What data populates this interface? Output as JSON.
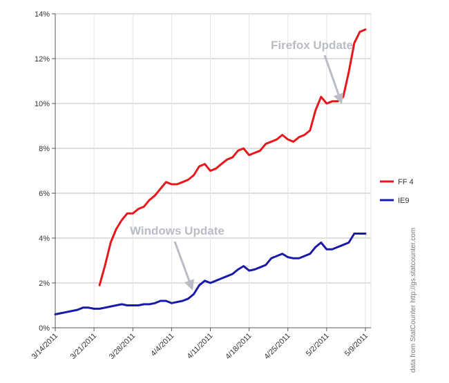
{
  "chart_data": {
    "type": "line",
    "title": "",
    "xlabel": "",
    "ylabel": "",
    "x_tick_labels": [
      "3/14/2011",
      "3/21/2011",
      "3/28/2011",
      "4/4/2011",
      "4/11/2011",
      "4/18/2011",
      "4/25/2011",
      "5/2/2011",
      "5/9/2011"
    ],
    "y_tick_labels": [
      "0%",
      "2%",
      "4%",
      "6%",
      "8%",
      "10%",
      "12%",
      "14%"
    ],
    "ylim": [
      0,
      14
    ],
    "xlim": [
      "2011-03-14",
      "2011-05-10"
    ],
    "grid": true,
    "legend_position": "right",
    "series": [
      {
        "name": "FF 4",
        "color": "#e8161b",
        "x": [
          "2011-03-22",
          "2011-03-23",
          "2011-03-24",
          "2011-03-25",
          "2011-03-26",
          "2011-03-27",
          "2011-03-28",
          "2011-03-29",
          "2011-03-30",
          "2011-03-31",
          "2011-04-01",
          "2011-04-02",
          "2011-04-03",
          "2011-04-04",
          "2011-04-05",
          "2011-04-06",
          "2011-04-07",
          "2011-04-08",
          "2011-04-09",
          "2011-04-10",
          "2011-04-11",
          "2011-04-12",
          "2011-04-13",
          "2011-04-14",
          "2011-04-15",
          "2011-04-16",
          "2011-04-17",
          "2011-04-18",
          "2011-04-19",
          "2011-04-20",
          "2011-04-21",
          "2011-04-22",
          "2011-04-23",
          "2011-04-24",
          "2011-04-25",
          "2011-04-26",
          "2011-04-27",
          "2011-04-28",
          "2011-04-29",
          "2011-04-30",
          "2011-05-01",
          "2011-05-02",
          "2011-05-03",
          "2011-05-04",
          "2011-05-05",
          "2011-05-06",
          "2011-05-07",
          "2011-05-08",
          "2011-05-09"
        ],
        "values": [
          1.9,
          2.8,
          3.8,
          4.4,
          4.8,
          5.1,
          5.1,
          5.3,
          5.4,
          5.7,
          5.9,
          6.2,
          6.5,
          6.4,
          6.4,
          6.5,
          6.6,
          6.8,
          7.2,
          7.3,
          7.0,
          7.1,
          7.3,
          7.5,
          7.6,
          7.9,
          8.0,
          7.7,
          7.8,
          7.9,
          8.2,
          8.3,
          8.4,
          8.6,
          8.4,
          8.3,
          8.5,
          8.6,
          8.8,
          9.7,
          10.3,
          10.0,
          10.1,
          10.1,
          10.3,
          11.4,
          12.7,
          13.2,
          13.3
        ]
      },
      {
        "name": "IE9",
        "color": "#1a1aa8",
        "x": [
          "2011-03-14",
          "2011-03-15",
          "2011-03-16",
          "2011-03-17",
          "2011-03-18",
          "2011-03-19",
          "2011-03-20",
          "2011-03-21",
          "2011-03-22",
          "2011-03-23",
          "2011-03-24",
          "2011-03-25",
          "2011-03-26",
          "2011-03-27",
          "2011-03-28",
          "2011-03-29",
          "2011-03-30",
          "2011-03-31",
          "2011-04-01",
          "2011-04-02",
          "2011-04-03",
          "2011-04-04",
          "2011-04-05",
          "2011-04-06",
          "2011-04-07",
          "2011-04-08",
          "2011-04-09",
          "2011-04-10",
          "2011-04-11",
          "2011-04-12",
          "2011-04-13",
          "2011-04-14",
          "2011-04-15",
          "2011-04-16",
          "2011-04-17",
          "2011-04-18",
          "2011-04-19",
          "2011-04-20",
          "2011-04-21",
          "2011-04-22",
          "2011-04-23",
          "2011-04-24",
          "2011-04-25",
          "2011-04-26",
          "2011-04-27",
          "2011-04-28",
          "2011-04-29",
          "2011-04-30",
          "2011-05-01",
          "2011-05-02",
          "2011-05-03",
          "2011-05-04",
          "2011-05-05",
          "2011-05-06",
          "2011-05-07",
          "2011-05-08",
          "2011-05-09"
        ],
        "values": [
          0.6,
          0.65,
          0.7,
          0.75,
          0.8,
          0.9,
          0.9,
          0.85,
          0.85,
          0.9,
          0.95,
          1.0,
          1.05,
          1.0,
          1.0,
          1.0,
          1.05,
          1.05,
          1.1,
          1.2,
          1.2,
          1.1,
          1.15,
          1.2,
          1.3,
          1.5,
          1.9,
          2.1,
          2.0,
          2.1,
          2.2,
          2.3,
          2.4,
          2.6,
          2.75,
          2.55,
          2.6,
          2.7,
          2.8,
          3.1,
          3.2,
          3.3,
          3.15,
          3.1,
          3.1,
          3.2,
          3.3,
          3.6,
          3.8,
          3.5,
          3.5,
          3.6,
          3.7,
          3.8,
          4.2,
          4.2,
          4.2
        ]
      }
    ],
    "annotations": [
      {
        "text": "Firefox Update",
        "target_x": "2011-05-05",
        "target_y": 10.3
      },
      {
        "text": "Windows Update",
        "target_x": "2011-04-08",
        "target_y": 1.7
      }
    ],
    "source_note": "data from StatCounter http://gs.statcounter.com"
  }
}
